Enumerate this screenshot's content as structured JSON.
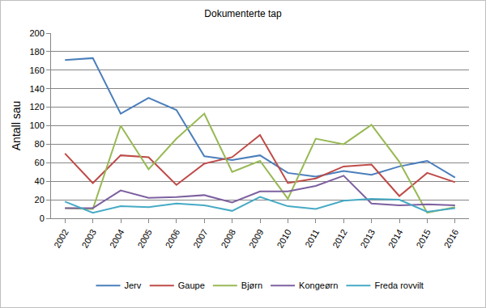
{
  "chart_data": {
    "type": "line",
    "title": "Dokumenterte tap",
    "y_label": "Antall sau",
    "categories": [
      "2002",
      "2003",
      "2004",
      "2005",
      "2006",
      "2007",
      "2008",
      "2009",
      "2010",
      "2011",
      "2012",
      "2013",
      "2014",
      "2015",
      "2016"
    ],
    "series": [
      {
        "name": "Jerv",
        "color": "#4a7ebb",
        "values": [
          171,
          173,
          113,
          130,
          117,
          67,
          63,
          68,
          49,
          45,
          51,
          47,
          56,
          62,
          44
        ]
      },
      {
        "name": "Gaupe",
        "color": "#be4b48",
        "values": [
          70,
          38,
          68,
          66,
          36,
          59,
          66,
          90,
          38,
          43,
          56,
          58,
          24,
          49,
          39
        ]
      },
      {
        "name": "Bjørn",
        "color": "#98b954",
        "values": [
          11,
          10,
          100,
          53,
          86,
          113,
          50,
          62,
          21,
          86,
          80,
          101,
          61,
          6,
          12
        ]
      },
      {
        "name": "Kongeørn",
        "color": "#7d60a0",
        "values": [
          11,
          11,
          30,
          22,
          23,
          25,
          17,
          29,
          29,
          35,
          46,
          16,
          14,
          15,
          14
        ]
      },
      {
        "name": "Freda rovvilt",
        "color": "#46aac5",
        "values": [
          18,
          6,
          13,
          12,
          16,
          14,
          8,
          23,
          13,
          10,
          19,
          21,
          20,
          7,
          11
        ]
      }
    ],
    "ylim": [
      0,
      200
    ],
    "yticks": [
      0,
      20,
      40,
      60,
      80,
      100,
      120,
      140,
      160,
      180,
      200
    ],
    "grid": true,
    "legend": "bottom"
  }
}
